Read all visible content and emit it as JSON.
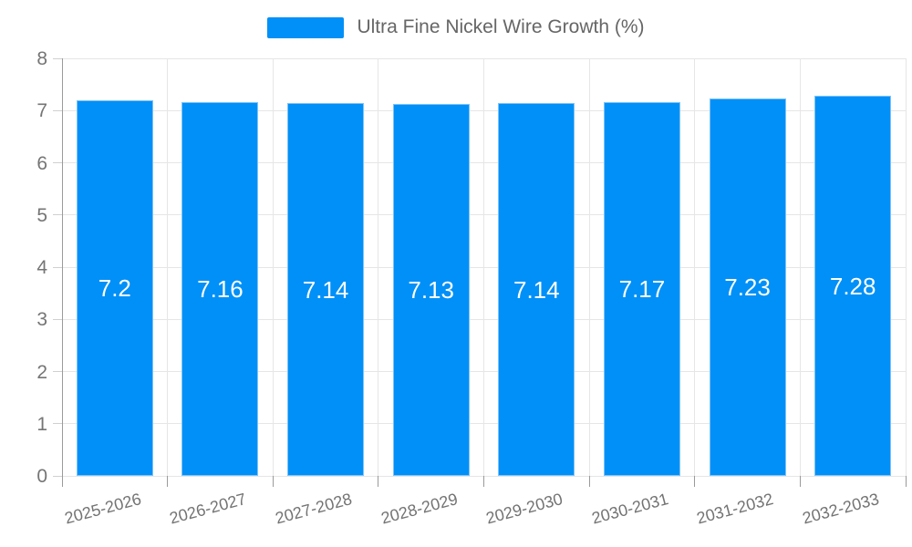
{
  "legend": {
    "label": "Ultra Fine Nickel Wire Growth (%)"
  },
  "chart_data": {
    "type": "bar",
    "title": "Ultra Fine Nickel Wire Growth (%)",
    "categories": [
      "2025-2026",
      "2026-2027",
      "2027-2028",
      "2028-2029",
      "2029-2030",
      "2030-2031",
      "2031-2032",
      "2032-2033"
    ],
    "values": [
      7.2,
      7.16,
      7.14,
      7.13,
      7.14,
      7.17,
      7.23,
      7.28
    ],
    "value_labels": [
      "7.2",
      "7.16",
      "7.14",
      "7.13",
      "7.14",
      "7.17",
      "7.23",
      "7.28"
    ],
    "xlabel": "",
    "ylabel": "",
    "ylim": [
      0,
      8
    ],
    "y_ticks": [
      0,
      1,
      2,
      3,
      4,
      5,
      6,
      7,
      8
    ],
    "grid": true,
    "legend_position": "top-center",
    "x_label_rotation_deg": -15,
    "colors": {
      "bar_fill": "#0090f7",
      "bar_border": "#7fc3f9",
      "value_label_text": "#ffffff",
      "gridline": "#e6e6e6",
      "axis_line": "#9a9a9a",
      "y_tick_mark": "#d0d0d0",
      "x_tick_mark": "#9a9a9a",
      "axis_text": "#757575",
      "legend_text": "#666666",
      "background": "#ffffff"
    }
  }
}
